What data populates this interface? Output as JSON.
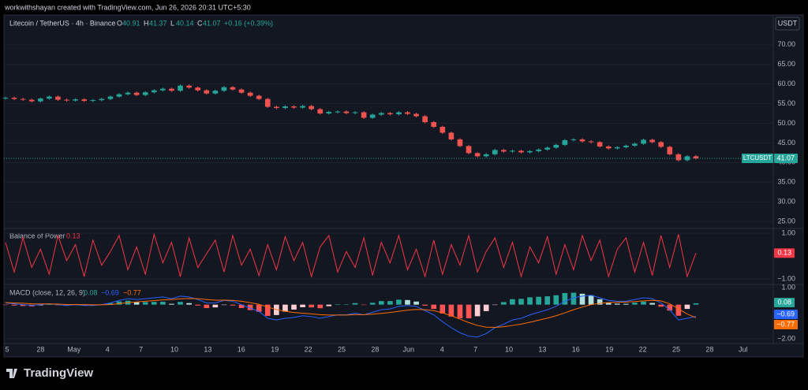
{
  "header": {
    "caption": "workwithshayan created with TradingView.com, Jun 26, 2026 20:31 UTC+5:30",
    "logo": "TradingView"
  },
  "time_axis": [
    "5",
    "28",
    "May",
    "4",
    "7",
    "10",
    "13",
    "16",
    "19",
    "22",
    "25",
    "28",
    "Jun",
    "4",
    "7",
    "10",
    "13",
    "16",
    "19",
    "22",
    "25",
    "28",
    "Jul"
  ],
  "chart_data": [
    {
      "type": "candlestick",
      "title": "Litecoin / TetherUS · 4h · Binance",
      "currency": "USDT",
      "symbol_tag": "LTCUSDT",
      "stat_labels": [
        "O",
        "H",
        "L",
        "C"
      ],
      "stats": [
        40.91,
        41.37,
        40.14,
        41.07
      ],
      "change_label": "+0.16 (+0.39%)",
      "up_color": "#26a69a",
      "down_color": "#ef5350",
      "close": [
        56.5,
        56.2,
        56,
        55.6,
        56.3,
        56.8,
        56,
        55.8,
        56.1,
        55.7,
        55.9,
        56.2,
        56.8,
        57.4,
        57.8,
        57.2,
        57.9,
        58.4,
        58.8,
        58.3,
        59.6,
        59.1,
        58.4,
        57.6,
        58.3,
        59.2,
        58.6,
        57.8,
        57,
        56.2,
        54.2,
        53.9,
        54.3,
        54,
        54.4,
        53.6,
        52.5,
        52.9,
        53,
        52.6,
        52.8,
        51.4,
        52.2,
        52.6,
        52.3,
        52.8,
        52.4,
        51.8,
        50.3,
        49.1,
        47.6,
        45.9,
        44.2,
        42.4,
        41.6,
        42.1,
        43.2,
        42.8,
        43,
        42.6,
        42.9,
        43.3,
        43.8,
        44.5,
        45.7,
        45.9,
        45.4,
        45.2,
        44.1,
        43.6,
        43.9,
        44.3,
        44.8,
        45.8,
        45.2,
        44,
        42.1,
        40.6,
        41.6,
        41.07
      ],
      "ylim": [
        23.2,
        77.4
      ],
      "yticks": [
        {
          "value": 70,
          "label": "70.00"
        },
        {
          "value": 65,
          "label": "65.00"
        },
        {
          "value": 60,
          "label": "60.00"
        },
        {
          "value": 55,
          "label": "55.00"
        },
        {
          "value": 50,
          "label": "50.00"
        },
        {
          "value": 45,
          "label": "45.00"
        },
        {
          "value": 40,
          "label": "40.00"
        },
        {
          "value": 35,
          "label": "35.00"
        },
        {
          "value": 30,
          "label": "30.00"
        },
        {
          "value": 25,
          "label": "25.00"
        }
      ]
    },
    {
      "type": "line",
      "title": "Balance of Power",
      "color": "#f23645",
      "values": [
        0.6,
        -0.7,
        0.8,
        -0.5,
        0.3,
        -0.8,
        0.9,
        -0.2,
        0.5,
        -0.9,
        0.7,
        -0.4,
        0.2,
        0.9,
        -0.6,
        0.4,
        -0.8,
        0.95,
        -0.3,
        0.6,
        -0.9,
        0.8,
        -0.5,
        0.1,
        0.7,
        -0.7,
        0.9,
        -0.4,
        0.3,
        -0.85,
        0.5,
        -0.6,
        0.85,
        -0.2,
        0.6,
        -0.9,
        0.4,
        0.9,
        -0.7,
        0.2,
        -0.5,
        0.8,
        -0.85,
        0.6,
        -0.3,
        0.9,
        -0.6,
        0.3,
        -0.9,
        0.7,
        -0.8,
        0.5,
        -0.4,
        0.9,
        -0.7,
        0.2,
        0.8,
        -0.5,
        0.6,
        -0.9,
        0.4,
        -0.3,
        0.85,
        -0.8,
        0.5,
        -0.6,
        0.9,
        -0.2,
        0.7,
        -0.9,
        0.3,
        0.8,
        -0.7,
        0.6,
        -0.85,
        0.9,
        -0.5,
        0.95,
        -0.9,
        0.13
      ],
      "ylim": [
        -1.207,
        1.207
      ],
      "yticks": [
        {
          "value": 1,
          "label": "1.00"
        },
        {
          "value": -1,
          "label": "−1.00"
        }
      ]
    },
    {
      "type": "macd",
      "title": "MACD (close, 12, 26, 9)",
      "histogram": {
        "values": [
          -0.02,
          -0.05,
          -0.08,
          -0.1,
          -0.04,
          0.01,
          -0.03,
          -0.06,
          -0.01,
          -0.05,
          -0.04,
          0.01,
          0.09,
          0.19,
          0.23,
          0.14,
          0.15,
          0.16,
          0.17,
          0.05,
          0.16,
          0.09,
          -0.05,
          -0.2,
          -0.16,
          -0.01,
          -0.05,
          -0.2,
          -0.32,
          -0.42,
          -0.66,
          -0.61,
          -0.41,
          -0.29,
          -0.15,
          -0.16,
          -0.21,
          -0.09,
          0.01,
          0.01,
          0.09,
          -0.01,
          0.11,
          0.21,
          0.21,
          0.29,
          0.27,
          0.18,
          -0.06,
          -0.25,
          -0.52,
          -0.7,
          -0.8,
          -0.8,
          -0.68,
          -0.38,
          -0.02,
          0.15,
          0.32,
          0.34,
          0.43,
          0.46,
          0.49,
          0.55,
          0.68,
          0.7,
          0.64,
          0.55,
          0.32,
          0.13,
          0.06,
          0.05,
          0.12,
          0.18,
          0.1,
          -0.12,
          -0.35,
          -0.65,
          -0.25,
          0.08
        ]
      },
      "series": [
        {
          "color": "#2962ff",
          "last_label": "−0.69",
          "values": [
            0.1,
            0.05,
            0,
            -0.05,
            0,
            0.05,
            0,
            -0.05,
            0,
            -0.05,
            -0.05,
            0,
            0.1,
            0.25,
            0.35,
            0.3,
            0.35,
            0.4,
            0.45,
            0.35,
            0.5,
            0.45,
            0.3,
            0.1,
            0.1,
            0.25,
            0.2,
            0,
            -0.2,
            -0.4,
            -0.8,
            -0.9,
            -0.8,
            -0.75,
            -0.65,
            -0.7,
            -0.8,
            -0.7,
            -0.6,
            -0.6,
            -0.5,
            -0.6,
            -0.45,
            -0.3,
            -0.25,
            -0.1,
            -0.05,
            -0.1,
            -0.35,
            -0.6,
            -1.0,
            -1.35,
            -1.65,
            -1.85,
            -1.9,
            -1.7,
            -1.35,
            -1.15,
            -0.9,
            -0.8,
            -0.6,
            -0.45,
            -0.3,
            -0.1,
            0.2,
            0.4,
            0.5,
            0.55,
            0.4,
            0.25,
            0.2,
            0.2,
            0.3,
            0.4,
            0.35,
            0.1,
            -0.3,
            -0.9,
            -0.8,
            -0.69
          ]
        },
        {
          "color": "#ff6d00",
          "last_label": "−0.77",
          "values": [
            0.12,
            0.1,
            0.08,
            0.05,
            0.04,
            0.04,
            0.03,
            0.01,
            0.01,
            0,
            -0.01,
            -0.01,
            0.01,
            0.06,
            0.12,
            0.16,
            0.2,
            0.24,
            0.28,
            0.3,
            0.34,
            0.36,
            0.35,
            0.3,
            0.26,
            0.26,
            0.25,
            0.2,
            0.12,
            0.02,
            -0.14,
            -0.29,
            -0.39,
            -0.46,
            -0.5,
            -0.54,
            -0.59,
            -0.61,
            -0.61,
            -0.61,
            -0.59,
            -0.59,
            -0.56,
            -0.51,
            -0.46,
            -0.39,
            -0.32,
            -0.28,
            -0.29,
            -0.35,
            -0.48,
            -0.65,
            -0.85,
            -1.05,
            -1.22,
            -1.32,
            -1.33,
            -1.3,
            -1.22,
            -1.14,
            -1.03,
            -0.91,
            -0.79,
            -0.65,
            -0.48,
            -0.3,
            -0.14,
            0,
            0.08,
            0.12,
            0.14,
            0.15,
            0.18,
            0.22,
            0.25,
            0.22,
            0.05,
            -0.25,
            -0.55,
            -0.77
          ]
        }
      ],
      "ylim": [
        -2.28,
        1.14
      ],
      "yticks": [
        {
          "value": 1,
          "label": "1.00"
        },
        {
          "value": -2,
          "label": "−2.00"
        }
      ]
    }
  ]
}
